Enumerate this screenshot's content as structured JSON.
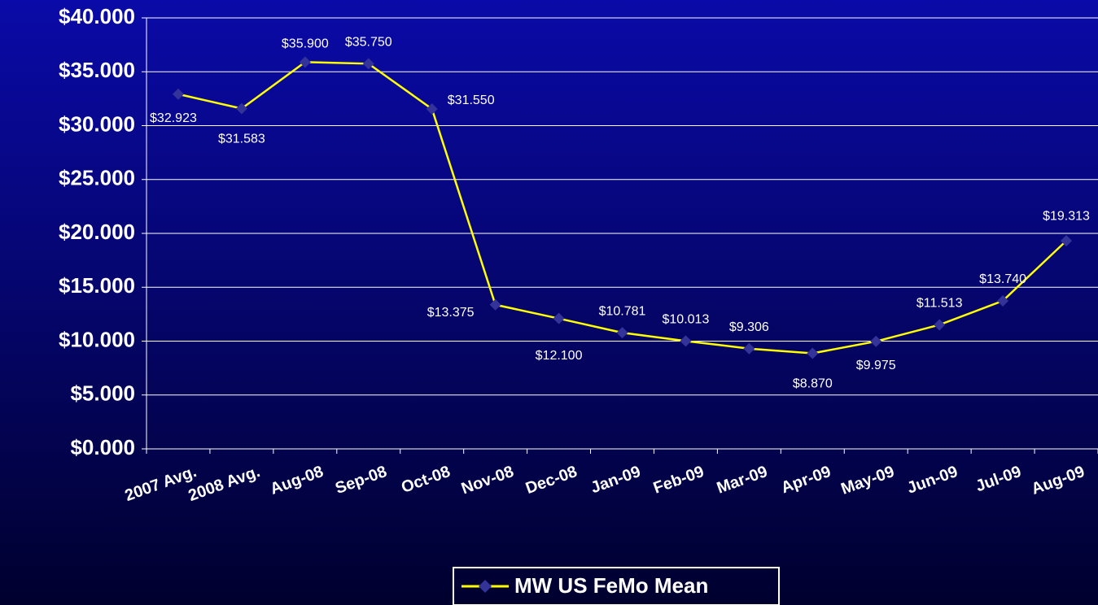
{
  "chart_data": {
    "type": "line",
    "categories": [
      "2007 Avg.",
      "2008 Avg.",
      "Aug-08",
      "Sep-08",
      "Oct-08",
      "Nov-08",
      "Dec-08",
      "Jan-09",
      "Feb-09",
      "Mar-09",
      "Apr-09",
      "May-09",
      "Jun-09",
      "Jul-09",
      "Aug-09"
    ],
    "series": [
      {
        "name": "MW US FeMo Mean",
        "color": "#ffff00",
        "marker_color": "#333399",
        "values": [
          32.923,
          31.583,
          35.9,
          35.75,
          31.55,
          13.375,
          12.1,
          10.781,
          10.013,
          9.306,
          8.87,
          9.975,
          11.513,
          13.74,
          19.313
        ],
        "value_labels": [
          "$32.923",
          "$31.583",
          "$35.900",
          "$35.750",
          "$31.550",
          "$13.375",
          "$12.100",
          "$10.781",
          "$10.013",
          "$9.306",
          "$8.870",
          "$9.975",
          "$11.513",
          "$13.740",
          "$19.313"
        ]
      }
    ],
    "ylim": [
      0,
      40
    ],
    "yticks": [
      {
        "value": 0,
        "label": "$0.000"
      },
      {
        "value": 5,
        "label": "$5.000"
      },
      {
        "value": 10,
        "label": "$10.000"
      },
      {
        "value": 15,
        "label": "$15.000"
      },
      {
        "value": 20,
        "label": "$20.000"
      },
      {
        "value": 25,
        "label": "$25.000"
      },
      {
        "value": 30,
        "label": "$30.000"
      },
      {
        "value": 35,
        "label": "$35.000"
      },
      {
        "value": 40,
        "label": "$40.000"
      }
    ],
    "grid": true,
    "legend": "bottom"
  }
}
